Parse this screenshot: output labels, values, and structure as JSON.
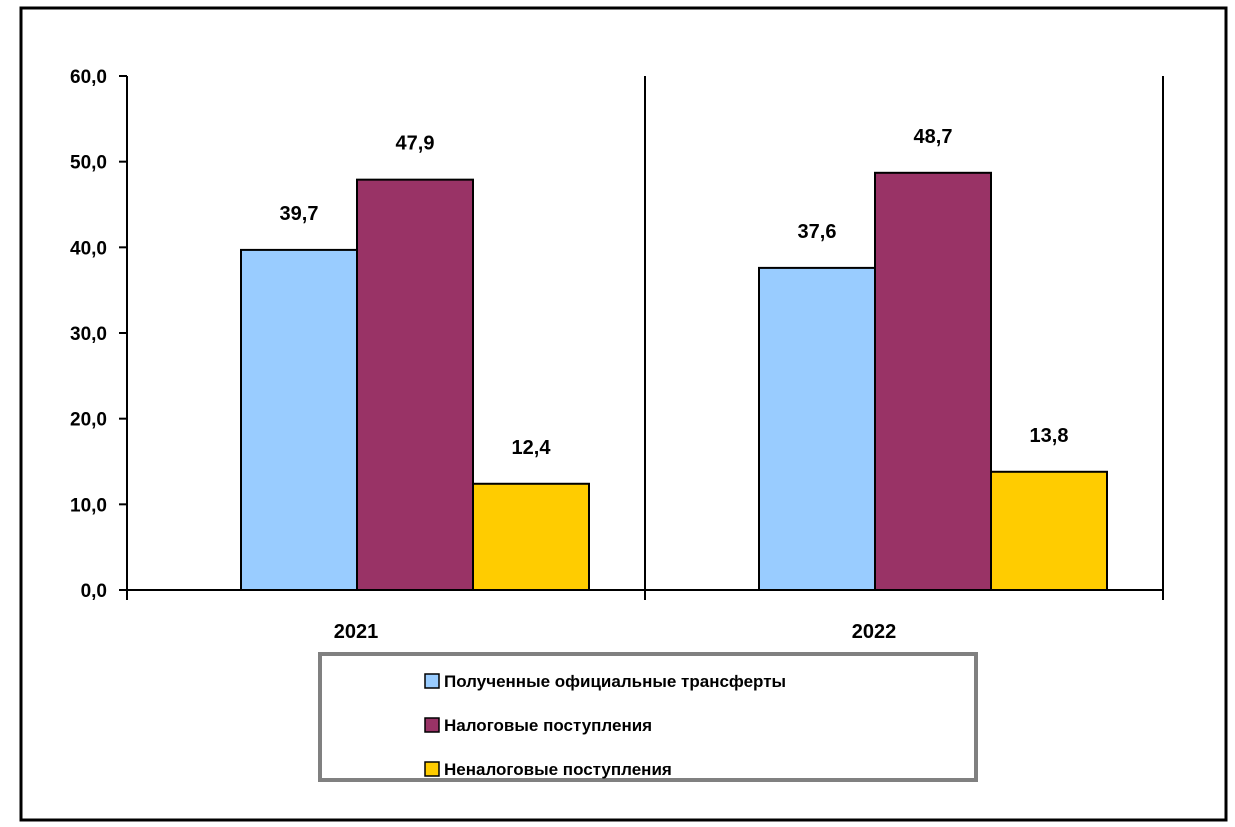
{
  "chart_data": {
    "type": "bar",
    "title": "",
    "xlabel": "",
    "ylabel": "",
    "categories": [
      "2021",
      "2022"
    ],
    "series": [
      {
        "name": "Полученные официальные трансферты",
        "color": "#99ccff",
        "values": [
          39.7,
          37.6
        ],
        "labels": [
          "39,7",
          "37,6"
        ]
      },
      {
        "name": "Налоговые поступления",
        "color": "#993366",
        "values": [
          47.9,
          48.7
        ],
        "labels": [
          "47,9",
          "48,7"
        ]
      },
      {
        "name": "Неналоговые поступления",
        "color": "#ffcc00",
        "values": [
          12.4,
          13.8
        ],
        "labels": [
          "12,4",
          "13,8"
        ]
      }
    ],
    "ylim": [
      0,
      60
    ],
    "yticks": [
      0,
      10,
      20,
      30,
      40,
      50,
      60
    ],
    "ytick_labels": [
      "0,0",
      "10,0",
      "20,0",
      "30,0",
      "40,0",
      "50,0",
      "60,0"
    ],
    "grid": false,
    "legend_position": "bottom-center"
  }
}
